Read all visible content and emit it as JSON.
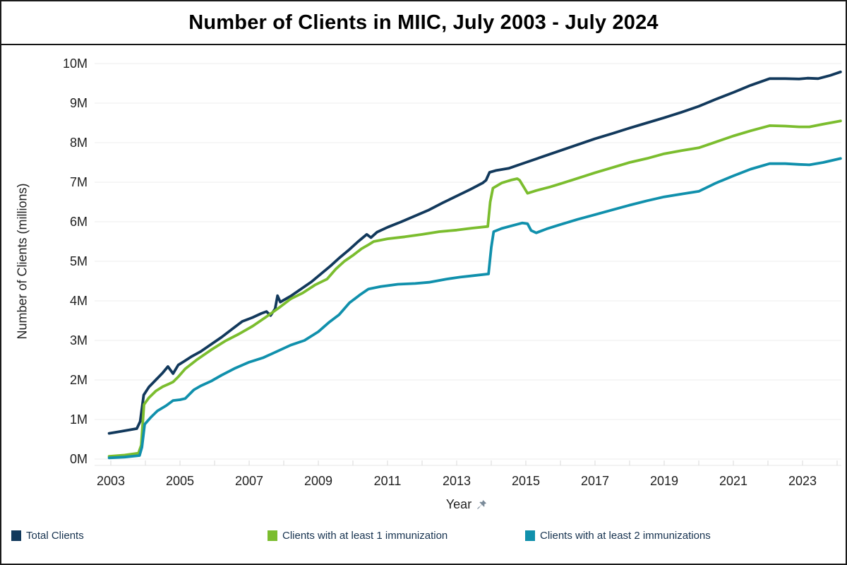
{
  "title": "Number of Clients in MIIC, July 2003 - July 2024",
  "colors": {
    "navy": "#12395C",
    "green": "#7BBD2E",
    "teal": "#1090AC",
    "grid": "#ECECEC",
    "axis_line": "#E7E7E7",
    "axis_tick": "#D9D9D9",
    "axis_text": "#1F1F1F",
    "legend_text": "#16324F",
    "pin_icon": "#7A8A99",
    "border": "#1A1A1A"
  },
  "legend": {
    "items": [
      {
        "label": "Total Clients",
        "color": "#12395C"
      },
      {
        "label": "Clients with at least 1 immunization",
        "color": "#7BBD2E"
      },
      {
        "label": "Clients with at least 2 immunizations",
        "color": "#1090AC"
      }
    ]
  },
  "x_axis_title": "Year",
  "pin_icon_name": "pushpin",
  "chart_data": {
    "type": "line",
    "title": "Number of Clients in MIIC, July 2003 - July 2024",
    "xlabel": "Year",
    "ylabel": "Number of Clients (millions)",
    "xlim": [
      2002.5,
      2024.12
    ],
    "ylim": [
      0,
      10
    ],
    "grid": "horizontal",
    "legend_position": "bottom",
    "y_ticks": [
      {
        "label": "0M",
        "value": 0
      },
      {
        "label": "1M",
        "value": 1
      },
      {
        "label": "2M",
        "value": 2
      },
      {
        "label": "3M",
        "value": 3
      },
      {
        "label": "4M",
        "value": 4
      },
      {
        "label": "5M",
        "value": 5
      },
      {
        "label": "6M",
        "value": 6
      },
      {
        "label": "7M",
        "value": 7
      },
      {
        "label": "8M",
        "value": 8
      },
      {
        "label": "9M",
        "value": 9
      },
      {
        "label": "10M",
        "value": 10
      }
    ],
    "x_ticks": [
      {
        "label": "2003",
        "value": 2003
      },
      {
        "label": "2005",
        "value": 2005
      },
      {
        "label": "2007",
        "value": 2007
      },
      {
        "label": "2009",
        "value": 2009
      },
      {
        "label": "2011",
        "value": 2011
      },
      {
        "label": "2013",
        "value": 2013
      },
      {
        "label": "2015",
        "value": 2015
      },
      {
        "label": "2017",
        "value": 2017
      },
      {
        "label": "2019",
        "value": 2019
      },
      {
        "label": "2021",
        "value": 2021
      },
      {
        "label": "2023",
        "value": 2023
      }
    ],
    "minor_x_ticks_every_year": true,
    "series": [
      {
        "name": "Total Clients",
        "color": "#12395C",
        "points": [
          [
            2002.95,
            0.65
          ],
          [
            2003.3,
            0.7
          ],
          [
            2003.75,
            0.77
          ],
          [
            2003.85,
            0.95
          ],
          [
            2003.95,
            1.62
          ],
          [
            2004.1,
            1.82
          ],
          [
            2004.3,
            2.0
          ],
          [
            2004.5,
            2.18
          ],
          [
            2004.65,
            2.34
          ],
          [
            2004.8,
            2.16
          ],
          [
            2004.95,
            2.38
          ],
          [
            2005.1,
            2.46
          ],
          [
            2005.35,
            2.6
          ],
          [
            2005.6,
            2.72
          ],
          [
            2005.9,
            2.9
          ],
          [
            2006.2,
            3.08
          ],
          [
            2006.5,
            3.28
          ],
          [
            2006.8,
            3.48
          ],
          [
            2007.1,
            3.58
          ],
          [
            2007.35,
            3.68
          ],
          [
            2007.5,
            3.73
          ],
          [
            2007.62,
            3.63
          ],
          [
            2007.75,
            3.8
          ],
          [
            2007.82,
            4.13
          ],
          [
            2007.9,
            3.97
          ],
          [
            2008.2,
            4.12
          ],
          [
            2008.5,
            4.3
          ],
          [
            2008.8,
            4.48
          ],
          [
            2009.1,
            4.7
          ],
          [
            2009.35,
            4.88
          ],
          [
            2009.6,
            5.08
          ],
          [
            2009.9,
            5.3
          ],
          [
            2010.15,
            5.5
          ],
          [
            2010.4,
            5.68
          ],
          [
            2010.52,
            5.6
          ],
          [
            2010.7,
            5.74
          ],
          [
            2011.0,
            5.86
          ],
          [
            2011.4,
            6.0
          ],
          [
            2011.8,
            6.15
          ],
          [
            2012.2,
            6.3
          ],
          [
            2012.6,
            6.48
          ],
          [
            2013.0,
            6.65
          ],
          [
            2013.4,
            6.82
          ],
          [
            2013.75,
            6.98
          ],
          [
            2013.85,
            7.05
          ],
          [
            2013.95,
            7.25
          ],
          [
            2014.15,
            7.3
          ],
          [
            2014.5,
            7.35
          ],
          [
            2015.0,
            7.5
          ],
          [
            2015.5,
            7.65
          ],
          [
            2016.0,
            7.8
          ],
          [
            2016.5,
            7.95
          ],
          [
            2017.0,
            8.1
          ],
          [
            2017.5,
            8.23
          ],
          [
            2018.0,
            8.37
          ],
          [
            2018.5,
            8.5
          ],
          [
            2019.0,
            8.63
          ],
          [
            2019.5,
            8.77
          ],
          [
            2020.0,
            8.92
          ],
          [
            2020.5,
            9.1
          ],
          [
            2021.0,
            9.27
          ],
          [
            2021.5,
            9.45
          ],
          [
            2022.05,
            9.62
          ],
          [
            2022.5,
            9.62
          ],
          [
            2022.9,
            9.61
          ],
          [
            2023.15,
            9.63
          ],
          [
            2023.45,
            9.62
          ],
          [
            2023.8,
            9.7
          ],
          [
            2024.1,
            9.79
          ]
        ]
      },
      {
        "name": "Clients with at least 1 immunization",
        "color": "#7BBD2E",
        "points": [
          [
            2002.95,
            0.07
          ],
          [
            2003.4,
            0.1
          ],
          [
            2003.8,
            0.15
          ],
          [
            2003.88,
            0.35
          ],
          [
            2003.96,
            1.38
          ],
          [
            2004.1,
            1.55
          ],
          [
            2004.3,
            1.72
          ],
          [
            2004.5,
            1.83
          ],
          [
            2004.68,
            1.9
          ],
          [
            2004.8,
            1.95
          ],
          [
            2004.95,
            2.08
          ],
          [
            2005.15,
            2.28
          ],
          [
            2005.5,
            2.52
          ],
          [
            2005.9,
            2.76
          ],
          [
            2006.3,
            2.98
          ],
          [
            2006.7,
            3.16
          ],
          [
            2007.1,
            3.36
          ],
          [
            2007.5,
            3.6
          ],
          [
            2007.9,
            3.85
          ],
          [
            2008.2,
            4.05
          ],
          [
            2008.55,
            4.2
          ],
          [
            2008.9,
            4.4
          ],
          [
            2009.25,
            4.55
          ],
          [
            2009.5,
            4.8
          ],
          [
            2009.75,
            5.0
          ],
          [
            2010.0,
            5.15
          ],
          [
            2010.25,
            5.32
          ],
          [
            2010.45,
            5.42
          ],
          [
            2010.6,
            5.5
          ],
          [
            2011.0,
            5.57
          ],
          [
            2011.5,
            5.62
          ],
          [
            2012.0,
            5.68
          ],
          [
            2012.5,
            5.75
          ],
          [
            2013.0,
            5.79
          ],
          [
            2013.45,
            5.84
          ],
          [
            2013.9,
            5.88
          ],
          [
            2013.97,
            6.5
          ],
          [
            2014.05,
            6.85
          ],
          [
            2014.3,
            6.98
          ],
          [
            2014.6,
            7.06
          ],
          [
            2014.75,
            7.09
          ],
          [
            2014.82,
            7.05
          ],
          [
            2015.05,
            6.72
          ],
          [
            2015.3,
            6.79
          ],
          [
            2015.7,
            6.88
          ],
          [
            2016.0,
            6.96
          ],
          [
            2016.5,
            7.1
          ],
          [
            2017.0,
            7.24
          ],
          [
            2017.5,
            7.37
          ],
          [
            2018.0,
            7.5
          ],
          [
            2018.5,
            7.6
          ],
          [
            2019.0,
            7.72
          ],
          [
            2019.5,
            7.8
          ],
          [
            2020.0,
            7.87
          ],
          [
            2020.5,
            8.02
          ],
          [
            2021.0,
            8.17
          ],
          [
            2021.5,
            8.3
          ],
          [
            2022.05,
            8.43
          ],
          [
            2022.5,
            8.42
          ],
          [
            2022.9,
            8.4
          ],
          [
            2023.2,
            8.4
          ],
          [
            2023.6,
            8.47
          ],
          [
            2024.1,
            8.55
          ]
        ]
      },
      {
        "name": "Clients with at least 2 immunizations",
        "color": "#1090AC",
        "points": [
          [
            2002.95,
            0.03
          ],
          [
            2003.4,
            0.05
          ],
          [
            2003.83,
            0.09
          ],
          [
            2003.9,
            0.3
          ],
          [
            2003.98,
            0.88
          ],
          [
            2004.15,
            1.05
          ],
          [
            2004.35,
            1.22
          ],
          [
            2004.6,
            1.35
          ],
          [
            2004.8,
            1.48
          ],
          [
            2005.0,
            1.5
          ],
          [
            2005.15,
            1.53
          ],
          [
            2005.4,
            1.75
          ],
          [
            2005.6,
            1.85
          ],
          [
            2005.9,
            1.97
          ],
          [
            2006.2,
            2.12
          ],
          [
            2006.6,
            2.3
          ],
          [
            2007.0,
            2.45
          ],
          [
            2007.4,
            2.56
          ],
          [
            2007.8,
            2.72
          ],
          [
            2008.2,
            2.88
          ],
          [
            2008.6,
            3.0
          ],
          [
            2009.0,
            3.22
          ],
          [
            2009.3,
            3.45
          ],
          [
            2009.6,
            3.65
          ],
          [
            2009.9,
            3.95
          ],
          [
            2010.2,
            4.15
          ],
          [
            2010.45,
            4.3
          ],
          [
            2010.8,
            4.36
          ],
          [
            2011.3,
            4.42
          ],
          [
            2011.8,
            4.44
          ],
          [
            2012.2,
            4.47
          ],
          [
            2012.7,
            4.55
          ],
          [
            2013.1,
            4.6
          ],
          [
            2013.5,
            4.64
          ],
          [
            2013.92,
            4.68
          ],
          [
            2014.0,
            5.35
          ],
          [
            2014.07,
            5.75
          ],
          [
            2014.3,
            5.83
          ],
          [
            2014.6,
            5.9
          ],
          [
            2014.9,
            5.97
          ],
          [
            2015.05,
            5.95
          ],
          [
            2015.15,
            5.78
          ],
          [
            2015.3,
            5.72
          ],
          [
            2015.6,
            5.82
          ],
          [
            2016.0,
            5.93
          ],
          [
            2016.5,
            6.06
          ],
          [
            2017.0,
            6.18
          ],
          [
            2017.5,
            6.3
          ],
          [
            2018.0,
            6.42
          ],
          [
            2018.5,
            6.53
          ],
          [
            2019.0,
            6.63
          ],
          [
            2019.5,
            6.7
          ],
          [
            2020.0,
            6.77
          ],
          [
            2020.5,
            6.98
          ],
          [
            2021.0,
            7.16
          ],
          [
            2021.5,
            7.33
          ],
          [
            2022.05,
            7.47
          ],
          [
            2022.5,
            7.47
          ],
          [
            2022.9,
            7.45
          ],
          [
            2023.2,
            7.44
          ],
          [
            2023.6,
            7.5
          ],
          [
            2024.1,
            7.6
          ]
        ]
      }
    ]
  }
}
